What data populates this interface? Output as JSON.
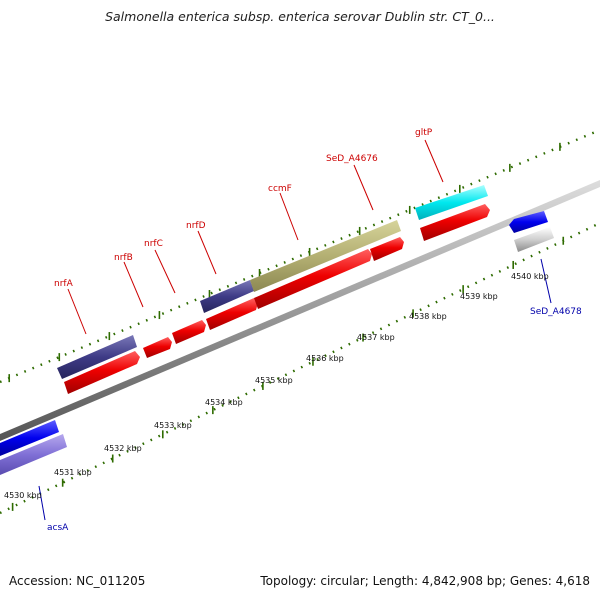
{
  "title": "Salmonella enterica subsp. enterica serovar Dublin str. CT_0...",
  "footer": {
    "accession": "Accession: NC_011205",
    "summary": "Topology: circular; Length: 4,842,908 bp; Genes: 4,618"
  },
  "colors": {
    "forward_label": "#cc0000",
    "reverse_label": "#0000aa",
    "tick": "#2e6b00",
    "backbone": "#999999"
  },
  "tick_labels": [
    "4530 kbp",
    "4531 kbp",
    "4532 kbp",
    "4533 kbp",
    "4534 kbp",
    "4535 kbp",
    "4536 kbp",
    "4537 kbp",
    "4538 kbp",
    "4539 kbp",
    "4540 kbp"
  ],
  "gene_labels": {
    "nrfA": "nrfA",
    "nrfB": "nrfB",
    "nrfC": "nrfC",
    "nrfD": "nrfD",
    "ccmF": "ccmF",
    "SeD_A4676": "SeD_A4676",
    "gltP": "gltP",
    "acsA": "acsA",
    "SeD_A4678": "SeD_A4678"
  }
}
